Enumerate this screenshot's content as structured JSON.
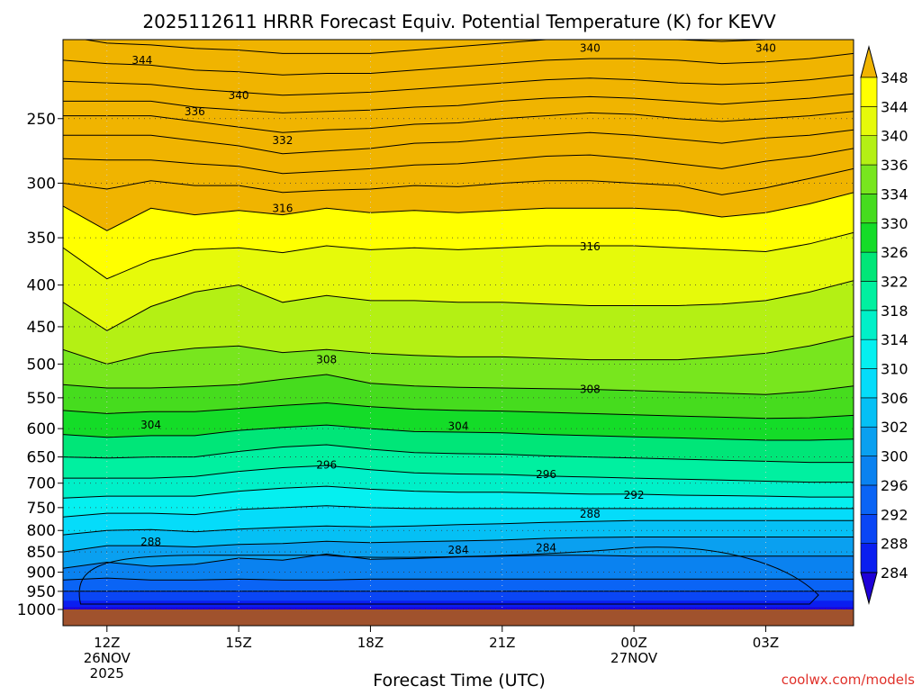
{
  "chart_data": {
    "type": "contour",
    "title": "2025112611 HRRR Forecast Equiv. Potential Temperature (K) for KEVV",
    "xlabel": "Forecast Time (UTC)",
    "ylabel": "",
    "credit": "coolwx.com/models",
    "x_ticks": [
      {
        "hour": 12,
        "lines": [
          "12Z",
          "26NOV",
          "2025"
        ]
      },
      {
        "hour": 15,
        "lines": [
          "15Z"
        ]
      },
      {
        "hour": 18,
        "lines": [
          "18Z"
        ]
      },
      {
        "hour": 21,
        "lines": [
          "21Z"
        ]
      },
      {
        "hour": 24,
        "lines": [
          "00Z",
          "27NOV"
        ]
      },
      {
        "hour": 27,
        "lines": [
          "03Z"
        ]
      }
    ],
    "xlim": [
      11,
      29
    ],
    "y_ticks": [
      250,
      300,
      350,
      400,
      450,
      500,
      550,
      600,
      650,
      700,
      750,
      800,
      850,
      900,
      950,
      1000
    ],
    "ylim_hPa": [
      200,
      1000
    ],
    "colorbar": {
      "levels": [
        284,
        288,
        292,
        296,
        300,
        302,
        306,
        310,
        314,
        318,
        322,
        326,
        330,
        334,
        336,
        340,
        344,
        348
      ],
      "colors": [
        "#1e00d8",
        "#0a1ef0",
        "#0a46f5",
        "#0a64f5",
        "#0a82f0",
        "#0aa0f0",
        "#05c0f5",
        "#05dcfa",
        "#05f0f0",
        "#00f0c8",
        "#00f0a0",
        "#00e678",
        "#14dc28",
        "#46dc1e",
        "#78e61e",
        "#b4f014",
        "#e6fa0a",
        "#ffff00",
        "#f0b400"
      ],
      "extend": "both"
    },
    "ground_color": "#a0522d",
    "contour_labels": [
      {
        "text": "344",
        "hour": 12.8,
        "hPa": 212
      },
      {
        "text": "340",
        "hour": 23.0,
        "hPa": 205
      },
      {
        "text": "340",
        "hour": 27.0,
        "hPa": 205
      },
      {
        "text": "340",
        "hour": 15.0,
        "hPa": 234
      },
      {
        "text": "336",
        "hour": 14.0,
        "hPa": 245
      },
      {
        "text": "332",
        "hour": 16.0,
        "hPa": 266
      },
      {
        "text": "316",
        "hour": 16.0,
        "hPa": 322
      },
      {
        "text": "316",
        "hour": 23.0,
        "hPa": 359
      },
      {
        "text": "308",
        "hour": 17.0,
        "hPa": 494
      },
      {
        "text": "308",
        "hour": 23.0,
        "hPa": 537
      },
      {
        "text": "304",
        "hour": 13.0,
        "hPa": 594
      },
      {
        "text": "304",
        "hour": 20.0,
        "hPa": 596
      },
      {
        "text": "296",
        "hour": 17.0,
        "hPa": 665
      },
      {
        "text": "296",
        "hour": 22.0,
        "hPa": 683
      },
      {
        "text": "292",
        "hour": 24.0,
        "hPa": 724
      },
      {
        "text": "288",
        "hour": 23.0,
        "hPa": 764
      },
      {
        "text": "288",
        "hour": 13.0,
        "hPa": 826
      },
      {
        "text": "284",
        "hour": 20.0,
        "hPa": 845
      },
      {
        "text": "284",
        "hour": 22.0,
        "hPa": 840
      }
    ],
    "profiles": [
      {
        "hour": 11.0,
        "hPa": [
          1000,
          993,
          975,
          950,
          920,
          890,
          850,
          810,
          770,
          730,
          690,
          650,
          610,
          570,
          530,
          480,
          420,
          360,
          320,
          300,
          280,
          262,
          248,
          238,
          225,
          212,
          198
        ]
      },
      {
        "hour": 12.0,
        "hPa": [
          1000,
          993,
          975,
          950,
          915,
          875,
          835,
          800,
          762,
          726,
          690,
          652,
          615,
          575,
          535,
          500,
          455,
          393,
          343,
          305,
          281,
          262,
          248,
          238,
          226,
          214,
          202
        ]
      },
      {
        "hour": 13.0,
        "hPa": [
          1000,
          993,
          975,
          950,
          920,
          885,
          835,
          798,
          762,
          726,
          690,
          650,
          612,
          572,
          535,
          485,
          425,
          373,
          322,
          298,
          281,
          262,
          248,
          238,
          227,
          215,
          203
        ]
      },
      {
        "hour": 14.0,
        "hPa": [
          1000,
          993,
          975,
          950,
          920,
          880,
          838,
          803,
          765,
          726,
          687,
          650,
          612,
          572,
          533,
          478,
          408,
          362,
          328,
          302,
          284,
          266,
          252,
          242,
          230,
          218,
          205
        ]
      },
      {
        "hour": 15.0,
        "hPa": [
          1000,
          993,
          975,
          950,
          918,
          865,
          832,
          797,
          754,
          716,
          677,
          640,
          603,
          567,
          530,
          475,
          400,
          360,
          324,
          302,
          286,
          270,
          256,
          244,
          232,
          219,
          206
        ]
      },
      {
        "hour": 16.0,
        "hPa": [
          1000,
          993,
          975,
          950,
          920,
          870,
          830,
          793,
          750,
          710,
          670,
          632,
          598,
          562,
          522,
          484,
          420,
          365,
          328,
          308,
          292,
          276,
          260,
          246,
          234,
          221,
          208
        ]
      },
      {
        "hour": 17.0,
        "hPa": [
          1000,
          993,
          975,
          950,
          920,
          855,
          825,
          790,
          746,
          706,
          666,
          628,
          594,
          558,
          515,
          480,
          412,
          358,
          322,
          306,
          290,
          274,
          258,
          245,
          233,
          220,
          208
        ]
      },
      {
        "hour": 18.0,
        "hPa": [
          1000,
          993,
          975,
          950,
          918,
          868,
          828,
          792,
          750,
          712,
          674,
          636,
          600,
          564,
          528,
          485,
          418,
          362,
          326,
          305,
          288,
          272,
          257,
          244,
          232,
          220,
          208
        ]
      },
      {
        "hour": 19.0,
        "hPa": [
          1000,
          993,
          975,
          950,
          918,
          866,
          826,
          790,
          752,
          716,
          680,
          642,
          605,
          568,
          532,
          488,
          418,
          360,
          324,
          302,
          285,
          268,
          254,
          242,
          230,
          218,
          206
        ]
      },
      {
        "hour": 20.0,
        "hPa": [
          1000,
          993,
          975,
          950,
          918,
          862,
          824,
          787,
          752,
          718,
          682,
          644,
          606,
          570,
          534,
          490,
          420,
          362,
          326,
          303,
          284,
          267,
          253,
          241,
          228,
          216,
          204
        ]
      },
      {
        "hour": 21.0,
        "hPa": [
          1000,
          993,
          975,
          950,
          918,
          860,
          822,
          785,
          752,
          718,
          683,
          645,
          607,
          571,
          535,
          490,
          420,
          360,
          324,
          300,
          281,
          264,
          250,
          238,
          226,
          214,
          202
        ]
      },
      {
        "hour": 22.0,
        "hPa": [
          1000,
          993,
          975,
          950,
          918,
          858,
          818,
          782,
          752,
          720,
          686,
          648,
          610,
          573,
          536,
          492,
          422,
          358,
          322,
          298,
          278,
          262,
          248,
          236,
          224,
          212,
          200
        ]
      },
      {
        "hour": 23.0,
        "hPa": [
          1000,
          993,
          975,
          950,
          918,
          858,
          816,
          780,
          752,
          722,
          688,
          650,
          612,
          575,
          537,
          494,
          424,
          358,
          322,
          298,
          277,
          260,
          246,
          235,
          223,
          211,
          199
        ]
      },
      {
        "hour": 24.0,
        "hPa": [
          1000,
          993,
          975,
          950,
          918,
          860,
          815,
          778,
          752,
          722,
          690,
          652,
          614,
          577,
          539,
          494,
          424,
          358,
          322,
          300,
          280,
          262,
          247,
          236,
          224,
          211,
          199
        ]
      },
      {
        "hour": 25.0,
        "hPa": [
          1000,
          993,
          975,
          950,
          918,
          860,
          815,
          778,
          752,
          724,
          692,
          654,
          616,
          579,
          541,
          494,
          424,
          360,
          324,
          302,
          284,
          265,
          250,
          238,
          226,
          212,
          200
        ]
      },
      {
        "hour": 26.0,
        "hPa": [
          1000,
          993,
          975,
          950,
          918,
          860,
          815,
          778,
          752,
          725,
          694,
          656,
          618,
          581,
          543,
          490,
          422,
          362,
          330,
          310,
          288,
          268,
          252,
          240,
          227,
          214,
          201
        ]
      },
      {
        "hour": 27.0,
        "hPa": [
          1000,
          993,
          975,
          950,
          918,
          860,
          815,
          778,
          752,
          726,
          696,
          658,
          620,
          583,
          545,
          485,
          418,
          364,
          326,
          304,
          282,
          264,
          250,
          238,
          226,
          213,
          200
        ]
      },
      {
        "hour": 28.0,
        "hPa": [
          1000,
          993,
          975,
          950,
          918,
          860,
          815,
          778,
          752,
          728,
          698,
          660,
          620,
          582,
          540,
          475,
          408,
          356,
          318,
          296,
          278,
          262,
          248,
          236,
          224,
          211,
          198
        ]
      },
      {
        "hour": 29.0,
        "hPa": [
          1000,
          993,
          975,
          950,
          918,
          860,
          815,
          778,
          752,
          728,
          698,
          660,
          618,
          578,
          532,
          462,
          395,
          345,
          308,
          288,
          272,
          258,
          245,
          233,
          221,
          208,
          196
        ]
      }
    ]
  }
}
